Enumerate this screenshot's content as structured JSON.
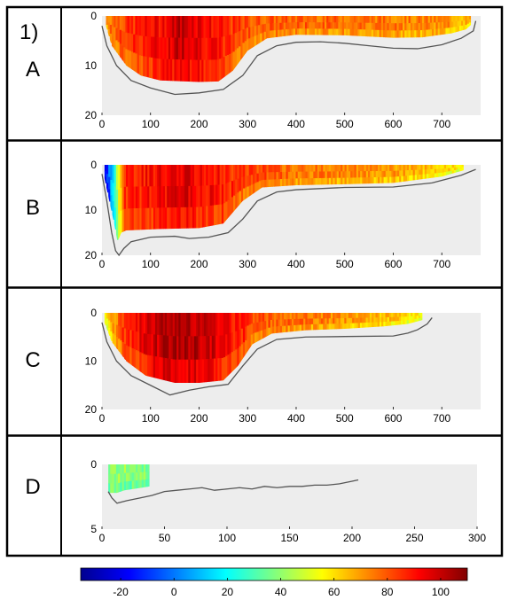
{
  "figure_label": "1)",
  "colors": {
    "background_fill": "#ededed",
    "bottom_line": "#555555",
    "frame": "#000000"
  },
  "colormap": [
    "#00008f",
    "#0000ff",
    "#0080ff",
    "#00ffff",
    "#80ff80",
    "#ffff00",
    "#ff8000",
    "#ff0000",
    "#800000"
  ],
  "chart_data": [
    {
      "type": "heatmap",
      "panel_label": "A",
      "xlim": [
        0,
        780
      ],
      "ylim": [
        0,
        20
      ],
      "y_reversed": true,
      "xticks": [
        0,
        100,
        200,
        300,
        400,
        500,
        600,
        700
      ],
      "yticks": [
        0,
        10,
        20
      ],
      "bottom_depth": [
        [
          0,
          2
        ],
        [
          10,
          6
        ],
        [
          30,
          10
        ],
        [
          60,
          13
        ],
        [
          100,
          14.5
        ],
        [
          150,
          15.8
        ],
        [
          200,
          15.5
        ],
        [
          250,
          14.8
        ],
        [
          290,
          12
        ],
        [
          320,
          8
        ],
        [
          360,
          6
        ],
        [
          400,
          5.3
        ],
        [
          450,
          5.2
        ],
        [
          500,
          5.5
        ],
        [
          550,
          6
        ],
        [
          600,
          6.5
        ],
        [
          650,
          6.6
        ],
        [
          700,
          5.8
        ],
        [
          740,
          4.5
        ],
        [
          765,
          3
        ],
        [
          770,
          1
        ]
      ],
      "fill_depth": [
        [
          8,
          2
        ],
        [
          20,
          6
        ],
        [
          50,
          10
        ],
        [
          80,
          12
        ],
        [
          120,
          13
        ],
        [
          200,
          13.3
        ],
        [
          240,
          13.2
        ],
        [
          270,
          11
        ],
        [
          300,
          7
        ],
        [
          340,
          4.5
        ],
        [
          400,
          3.8
        ],
        [
          500,
          3.9
        ],
        [
          600,
          4.4
        ],
        [
          660,
          4.3
        ],
        [
          720,
          3.5
        ],
        [
          750,
          2.7
        ],
        [
          760,
          1.8
        ]
      ],
      "values": [
        [
          0,
          70
        ],
        [
          30,
          80
        ],
        [
          80,
          88
        ],
        [
          140,
          95
        ],
        [
          160,
          102
        ],
        [
          200,
          96
        ],
        [
          240,
          88
        ],
        [
          300,
          80
        ],
        [
          400,
          78
        ],
        [
          500,
          77
        ],
        [
          600,
          75
        ],
        [
          700,
          72
        ],
        [
          760,
          65
        ]
      ]
    },
    {
      "type": "heatmap",
      "panel_label": "B",
      "xlim": [
        0,
        780
      ],
      "ylim": [
        0,
        20
      ],
      "y_reversed": true,
      "xticks": [
        0,
        100,
        200,
        300,
        400,
        500,
        600,
        700
      ],
      "yticks": [
        0,
        10,
        20
      ],
      "bottom_depth": [
        [
          0,
          2
        ],
        [
          10,
          8
        ],
        [
          20,
          15
        ],
        [
          28,
          19
        ],
        [
          35,
          20
        ],
        [
          45,
          18.5
        ],
        [
          60,
          17
        ],
        [
          100,
          16
        ],
        [
          150,
          15.8
        ],
        [
          180,
          16.3
        ],
        [
          220,
          16
        ],
        [
          260,
          15
        ],
        [
          290,
          12
        ],
        [
          320,
          8
        ],
        [
          360,
          6
        ],
        [
          400,
          5.5
        ],
        [
          500,
          5
        ],
        [
          600,
          4.9
        ],
        [
          680,
          4
        ],
        [
          740,
          2.3
        ],
        [
          770,
          1
        ]
      ],
      "fill_depth": [
        [
          5,
          3
        ],
        [
          15,
          8
        ],
        [
          25,
          13
        ],
        [
          32,
          17
        ],
        [
          40,
          15
        ],
        [
          50,
          14.5
        ],
        [
          120,
          14.2
        ],
        [
          200,
          14
        ],
        [
          250,
          13
        ],
        [
          290,
          8
        ],
        [
          330,
          5
        ],
        [
          400,
          4.5
        ],
        [
          500,
          4.3
        ],
        [
          600,
          4
        ],
        [
          700,
          2.6
        ],
        [
          745,
          1.2
        ]
      ],
      "values": [
        [
          0,
          -22
        ],
        [
          12,
          -8
        ],
        [
          22,
          15
        ],
        [
          32,
          45
        ],
        [
          45,
          86
        ],
        [
          100,
          90
        ],
        [
          160,
          96
        ],
        [
          220,
          92
        ],
        [
          280,
          84
        ],
        [
          400,
          76
        ],
        [
          500,
          73
        ],
        [
          600,
          70
        ],
        [
          700,
          62
        ],
        [
          760,
          55
        ]
      ]
    },
    {
      "type": "heatmap",
      "panel_label": "C",
      "xlim": [
        0,
        780
      ],
      "ylim": [
        0,
        20
      ],
      "y_reversed": true,
      "xticks": [
        0,
        100,
        200,
        300,
        400,
        500,
        600,
        700
      ],
      "yticks": [
        0,
        10,
        20
      ],
      "bottom_depth": [
        [
          0,
          2
        ],
        [
          10,
          6
        ],
        [
          30,
          10
        ],
        [
          60,
          13
        ],
        [
          100,
          15
        ],
        [
          140,
          17
        ],
        [
          180,
          16
        ],
        [
          220,
          15.3
        ],
        [
          260,
          14.8
        ],
        [
          290,
          11
        ],
        [
          320,
          7.5
        ],
        [
          360,
          5.5
        ],
        [
          420,
          5
        ],
        [
          500,
          4.9
        ],
        [
          600,
          4.8
        ],
        [
          630,
          4.2
        ],
        [
          650,
          3.5
        ],
        [
          670,
          2.3
        ],
        [
          680,
          1
        ]
      ],
      "fill_depth": [
        [
          5,
          2
        ],
        [
          20,
          6
        ],
        [
          50,
          10
        ],
        [
          90,
          13
        ],
        [
          150,
          14.5
        ],
        [
          200,
          14.5
        ],
        [
          250,
          14
        ],
        [
          280,
          11
        ],
        [
          310,
          6.5
        ],
        [
          350,
          4.3
        ],
        [
          420,
          3.6
        ],
        [
          500,
          3.3
        ],
        [
          580,
          2.8
        ],
        [
          630,
          2.3
        ],
        [
          660,
          1.5
        ]
      ],
      "values": [
        [
          0,
          50
        ],
        [
          40,
          82
        ],
        [
          100,
          98
        ],
        [
          160,
          104
        ],
        [
          220,
          100
        ],
        [
          270,
          90
        ],
        [
          320,
          80
        ],
        [
          450,
          74
        ],
        [
          550,
          68
        ],
        [
          630,
          60
        ],
        [
          665,
          55
        ]
      ]
    },
    {
      "type": "heatmap",
      "panel_label": "D",
      "xlim": [
        0,
        300
      ],
      "ylim": [
        0,
        5
      ],
      "y_reversed": true,
      "xticks": [
        0,
        50,
        100,
        150,
        200,
        250,
        300
      ],
      "yticks": [
        0,
        5
      ],
      "bottom_depth": [
        [
          5,
          2.1
        ],
        [
          8,
          2.6
        ],
        [
          12,
          3
        ],
        [
          20,
          2.8
        ],
        [
          30,
          2.6
        ],
        [
          40,
          2.4
        ],
        [
          50,
          2.1
        ],
        [
          60,
          2
        ],
        [
          70,
          1.9
        ],
        [
          80,
          1.8
        ],
        [
          90,
          2
        ],
        [
          100,
          1.9
        ],
        [
          110,
          1.8
        ],
        [
          120,
          1.9
        ],
        [
          130,
          1.7
        ],
        [
          140,
          1.8
        ],
        [
          150,
          1.7
        ],
        [
          160,
          1.7
        ],
        [
          170,
          1.6
        ],
        [
          180,
          1.6
        ],
        [
          190,
          1.5
        ],
        [
          200,
          1.3
        ],
        [
          205,
          1.2
        ]
      ],
      "fill_depth": [
        [
          5,
          2.2
        ],
        [
          12,
          2.2
        ],
        [
          18,
          2
        ],
        [
          25,
          1.9
        ],
        [
          32,
          1.8
        ],
        [
          38,
          1.7
        ]
      ],
      "values": [
        [
          0,
          42
        ],
        [
          20,
          40
        ],
        [
          38,
          38
        ]
      ]
    }
  ],
  "colorbar": {
    "range": [
      -35,
      110
    ],
    "tick_labels": [
      "-20",
      "0",
      "20",
      "40",
      "60",
      "80",
      "100"
    ]
  }
}
